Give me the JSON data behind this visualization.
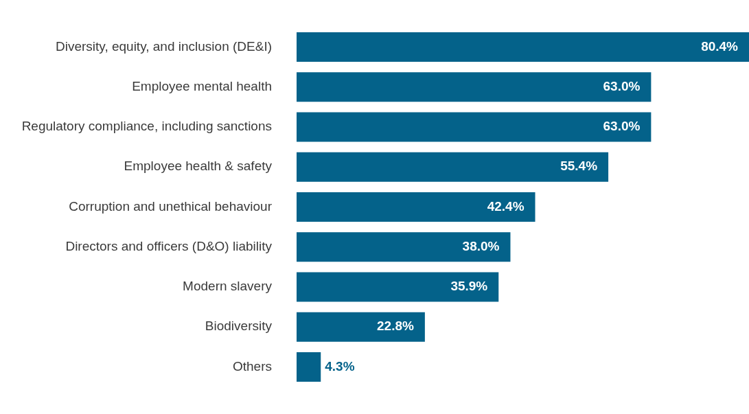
{
  "chart_data": {
    "type": "bar",
    "orientation": "horizontal",
    "data_labels": true,
    "tick_labels": "y",
    "categories": [
      "Diversity, equity, and inclusion (DE&I)",
      "Employee mental health",
      "Regulatory compliance, including sanctions",
      "Employee health & safety",
      "Corruption and unethical behaviour",
      "Directors and officers (D&O) liability",
      "Modern slavery",
      "Biodiversity",
      "Others"
    ],
    "values": [
      80.4,
      63.0,
      63.0,
      55.4,
      42.4,
      38.0,
      35.9,
      22.8,
      4.3
    ],
    "value_labels": [
      "80.4%",
      "63.0%",
      "63.0%",
      "55.4%",
      "42.4%",
      "38.0%",
      "35.9%",
      "22.8%",
      "4.3%"
    ],
    "color": "#04628a"
  }
}
